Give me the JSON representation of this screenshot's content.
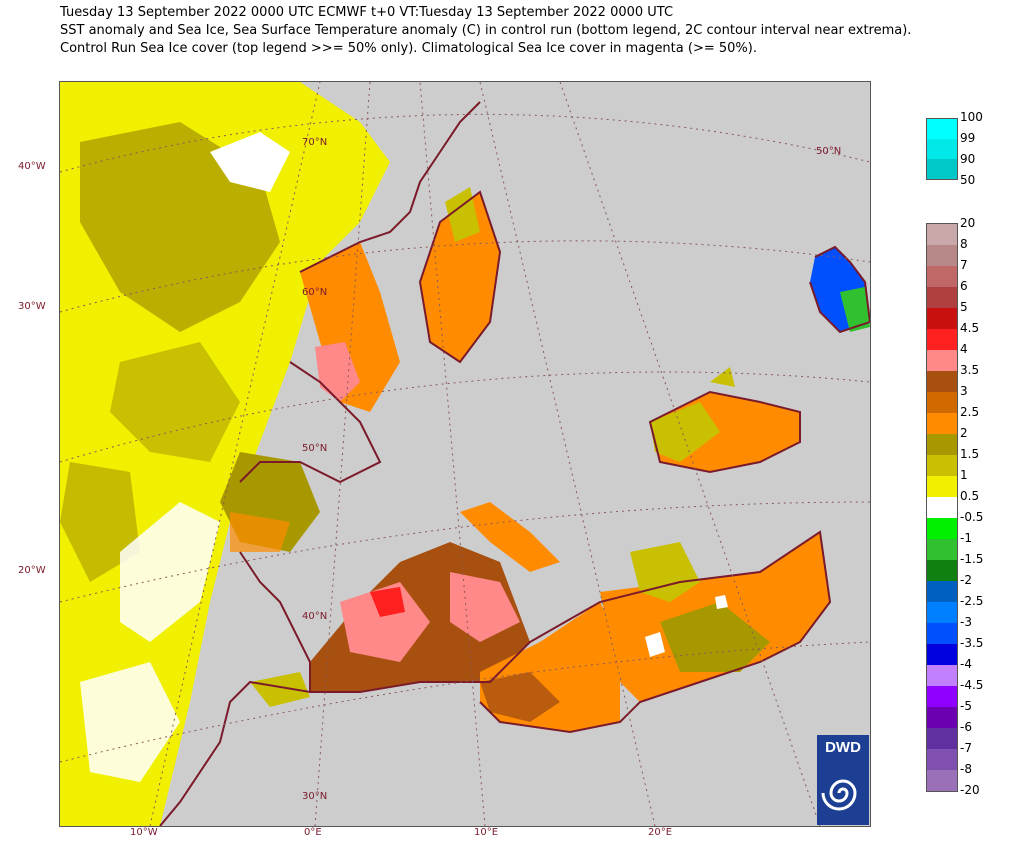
{
  "header": {
    "line1": "Tuesday 13 September 2022 0000 UTC  ECMWF  t+0  VT:Tuesday 13 September 2022 0000 UTC",
    "line2": "SST anomaly and Sea Ice, Sea Surface Temperature anomaly (C) in control run (bottom legend, 2C contour interval near extrema).",
    "line3": "Control Run Sea Ice cover (top legend >>= 50% only). Climatological Sea Ice cover in magenta (>= 50%)."
  },
  "map": {
    "lat_labels": [
      "70°N",
      "60°N",
      "50°N",
      "40°N",
      "30°N",
      "50°N"
    ],
    "left_labels": [
      "40°W",
      "30°W",
      "20°W"
    ],
    "bottom_labels": [
      "10°W",
      "0°E",
      "10°E",
      "20°E"
    ],
    "colors": {
      "land": "#cdcdcd",
      "coast": "#7a1a2a",
      "grid": "#8a5a5a"
    }
  },
  "ice_legend": {
    "labels": [
      "100",
      "99",
      "90",
      "50"
    ],
    "colors": [
      "#00ffff",
      "#00e8e8",
      "#00d0d0",
      "#00b8b8"
    ]
  },
  "sst_legend": {
    "labels": [
      "20",
      "8",
      "7",
      "6",
      "5",
      "4.5",
      "4",
      "3.5",
      "3",
      "2.5",
      "2",
      "1.5",
      "1",
      "0.5",
      "-0.5",
      "-1",
      "-1.5",
      "-2",
      "-2.5",
      "-3",
      "-3.5",
      "-4",
      "-4.5",
      "-5",
      "-6",
      "-7",
      "-8",
      "-20"
    ],
    "colors": [
      "#c8a8a8",
      "#b88888",
      "#c06868",
      "#b04040",
      "#c81010",
      "#ff2020",
      "#ff8888",
      "#a85010",
      "#d06a00",
      "#ff8c00",
      "#a89800",
      "#c8c000",
      "#f0f000",
      "#ffffff",
      "#00f000",
      "#30c030",
      "#108010",
      "#0060c0",
      "#0080ff",
      "#0050ff",
      "#0000e0",
      "#c080ff",
      "#9000ff",
      "#6a00b0",
      "#6030a0",
      "#8050b0",
      "#9a70b8"
    ]
  },
  "logo": {
    "text": "DWD"
  }
}
